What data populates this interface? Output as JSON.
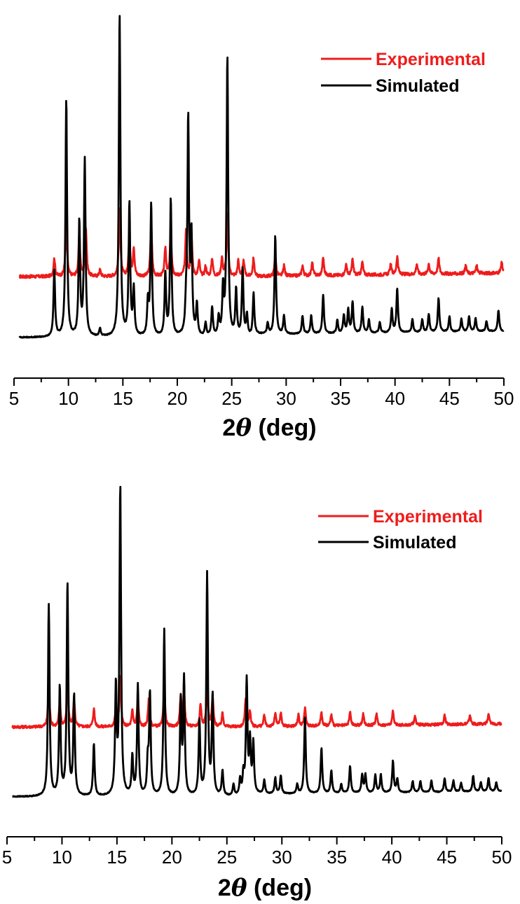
{
  "chart_data": [
    {
      "type": "line",
      "xlabel_main": "2",
      "xlabel_symbol": "θ",
      "xlabel_unit": " (deg)",
      "xlim": [
        5,
        50
      ],
      "x_ticks": [
        5,
        10,
        15,
        20,
        25,
        30,
        35,
        40,
        45,
        50
      ],
      "legend": {
        "position": "top-right"
      },
      "series": [
        {
          "name": "Experimental",
          "color": "#ee1c1c",
          "baseline": 0.235,
          "noise": 0.012,
          "peaks": [
            [
              8.7,
              0.07
            ],
            [
              9.8,
              0.22
            ],
            [
              11.0,
              0.16
            ],
            [
              11.6,
              0.19
            ],
            [
              12.9,
              0.025
            ],
            [
              14.7,
              0.27
            ],
            [
              15.6,
              0.16
            ],
            [
              16.0,
              0.11
            ],
            [
              17.6,
              0.2
            ],
            [
              18.9,
              0.11
            ],
            [
              19.4,
              0.17
            ],
            [
              20.8,
              0.18
            ],
            [
              21.3,
              0.16
            ],
            [
              22.0,
              0.06
            ],
            [
              22.6,
              0.04
            ],
            [
              23.2,
              0.07
            ],
            [
              24.1,
              0.07
            ],
            [
              24.6,
              0.24
            ],
            [
              25.6,
              0.06
            ],
            [
              26.1,
              0.06
            ],
            [
              27.0,
              0.07
            ],
            [
              29.0,
              0.08
            ],
            [
              29.8,
              0.04
            ],
            [
              31.5,
              0.04
            ],
            [
              32.4,
              0.05
            ],
            [
              33.4,
              0.07
            ],
            [
              35.5,
              0.04
            ],
            [
              36.1,
              0.06
            ],
            [
              37.0,
              0.05
            ],
            [
              39.6,
              0.04
            ],
            [
              40.2,
              0.07
            ],
            [
              42.0,
              0.04
            ],
            [
              43.1,
              0.04
            ],
            [
              44.0,
              0.06
            ],
            [
              46.5,
              0.03
            ],
            [
              47.5,
              0.03
            ],
            [
              49.8,
              0.04
            ]
          ]
        },
        {
          "name": "Simulated",
          "color": "#000000",
          "baseline": 0.0,
          "noise": 0.0,
          "peaks": [
            [
              8.7,
              0.26
            ],
            [
              9.8,
              0.92
            ],
            [
              11.0,
              0.44
            ],
            [
              11.5,
              0.68
            ],
            [
              12.9,
              0.03
            ],
            [
              14.7,
              1.25
            ],
            [
              15.6,
              0.51
            ],
            [
              16.0,
              0.18
            ],
            [
              17.3,
              0.13
            ],
            [
              17.6,
              0.51
            ],
            [
              18.9,
              0.24
            ],
            [
              19.4,
              0.53
            ],
            [
              20.8,
              0.09
            ],
            [
              21.0,
              0.83
            ],
            [
              21.3,
              0.38
            ],
            [
              21.8,
              0.12
            ],
            [
              22.6,
              0.05
            ],
            [
              23.2,
              0.11
            ],
            [
              23.8,
              0.07
            ],
            [
              24.2,
              0.18
            ],
            [
              24.6,
              1.08
            ],
            [
              25.4,
              0.18
            ],
            [
              26.0,
              0.26
            ],
            [
              26.4,
              0.08
            ],
            [
              27.0,
              0.16
            ],
            [
              28.3,
              0.04
            ],
            [
              29.0,
              0.38
            ],
            [
              29.8,
              0.07
            ],
            [
              31.5,
              0.07
            ],
            [
              32.3,
              0.07
            ],
            [
              33.4,
              0.15
            ],
            [
              34.7,
              0.05
            ],
            [
              35.3,
              0.07
            ],
            [
              35.7,
              0.09
            ],
            [
              36.1,
              0.12
            ],
            [
              37.0,
              0.1
            ],
            [
              37.6,
              0.05
            ],
            [
              38.6,
              0.04
            ],
            [
              39.7,
              0.09
            ],
            [
              40.2,
              0.17
            ],
            [
              41.6,
              0.05
            ],
            [
              42.5,
              0.05
            ],
            [
              43.1,
              0.07
            ],
            [
              44.0,
              0.13
            ],
            [
              45.0,
              0.06
            ],
            [
              46.1,
              0.05
            ],
            [
              46.8,
              0.06
            ],
            [
              47.4,
              0.05
            ],
            [
              48.4,
              0.04
            ],
            [
              49.5,
              0.08
            ]
          ]
        }
      ]
    },
    {
      "type": "line",
      "xlabel_main": "2",
      "xlabel_symbol": "θ",
      "xlabel_unit": " (deg)",
      "xlim": [
        5,
        50
      ],
      "x_ticks": [
        5,
        10,
        15,
        20,
        25,
        30,
        35,
        40,
        45,
        50
      ],
      "legend": {
        "position": "top-right"
      },
      "series": [
        {
          "name": "Experimental",
          "color": "#ee1c1c",
          "baseline": 0.31,
          "noise": 0.012,
          "peaks": [
            [
              8.8,
              0.19
            ],
            [
              9.8,
              0.11
            ],
            [
              10.5,
              0.2
            ],
            [
              11.1,
              0.12
            ],
            [
              12.9,
              0.08
            ],
            [
              14.9,
              0.08
            ],
            [
              15.3,
              0.22
            ],
            [
              16.4,
              0.07
            ],
            [
              16.9,
              0.13
            ],
            [
              17.9,
              0.13
            ],
            [
              19.3,
              0.18
            ],
            [
              20.8,
              0.13
            ],
            [
              21.1,
              0.15
            ],
            [
              22.6,
              0.1
            ],
            [
              23.2,
              0.2
            ],
            [
              23.7,
              0.13
            ],
            [
              24.6,
              0.06
            ],
            [
              26.7,
              0.12
            ],
            [
              27.1,
              0.07
            ],
            [
              28.4,
              0.05
            ],
            [
              29.4,
              0.06
            ],
            [
              29.9,
              0.06
            ],
            [
              31.5,
              0.05
            ],
            [
              32.1,
              0.08
            ],
            [
              33.6,
              0.06
            ],
            [
              34.5,
              0.05
            ],
            [
              36.2,
              0.06
            ],
            [
              37.4,
              0.05
            ],
            [
              38.6,
              0.05
            ],
            [
              40.1,
              0.06
            ],
            [
              42.1,
              0.04
            ],
            [
              44.8,
              0.04
            ],
            [
              47.1,
              0.04
            ],
            [
              48.8,
              0.04
            ]
          ]
        },
        {
          "name": "Simulated",
          "color": "#000000",
          "baseline": 0.0,
          "noise": 0.0,
          "peaks": [
            [
              8.8,
              0.85
            ],
            [
              9.8,
              0.48
            ],
            [
              10.5,
              0.94
            ],
            [
              11.1,
              0.44
            ],
            [
              12.9,
              0.23
            ],
            [
              14.9,
              0.47
            ],
            [
              15.3,
              1.37
            ],
            [
              16.4,
              0.17
            ],
            [
              16.9,
              0.49
            ],
            [
              17.8,
              0.14
            ],
            [
              18.0,
              0.45
            ],
            [
              19.3,
              0.74
            ],
            [
              20.8,
              0.41
            ],
            [
              21.1,
              0.51
            ],
            [
              22.5,
              0.33
            ],
            [
              23.2,
              0.98
            ],
            [
              23.7,
              0.44
            ],
            [
              24.6,
              0.11
            ],
            [
              25.6,
              0.05
            ],
            [
              26.2,
              0.07
            ],
            [
              26.5,
              0.09
            ],
            [
              26.8,
              0.51
            ],
            [
              27.1,
              0.22
            ],
            [
              27.4,
              0.22
            ],
            [
              28.4,
              0.06
            ],
            [
              29.4,
              0.07
            ],
            [
              29.9,
              0.08
            ],
            [
              31.4,
              0.04
            ],
            [
              32.1,
              0.34
            ],
            [
              33.6,
              0.2
            ],
            [
              34.5,
              0.1
            ],
            [
              35.4,
              0.04
            ],
            [
              36.2,
              0.12
            ],
            [
              37.3,
              0.08
            ],
            [
              37.6,
              0.08
            ],
            [
              38.5,
              0.08
            ],
            [
              39.0,
              0.08
            ],
            [
              40.1,
              0.14
            ],
            [
              40.5,
              0.06
            ],
            [
              41.9,
              0.05
            ],
            [
              42.6,
              0.05
            ],
            [
              43.6,
              0.05
            ],
            [
              44.8,
              0.06
            ],
            [
              45.6,
              0.05
            ],
            [
              46.3,
              0.04
            ],
            [
              47.4,
              0.07
            ],
            [
              48.1,
              0.04
            ],
            [
              48.8,
              0.06
            ],
            [
              49.5,
              0.04
            ]
          ]
        }
      ]
    }
  ]
}
